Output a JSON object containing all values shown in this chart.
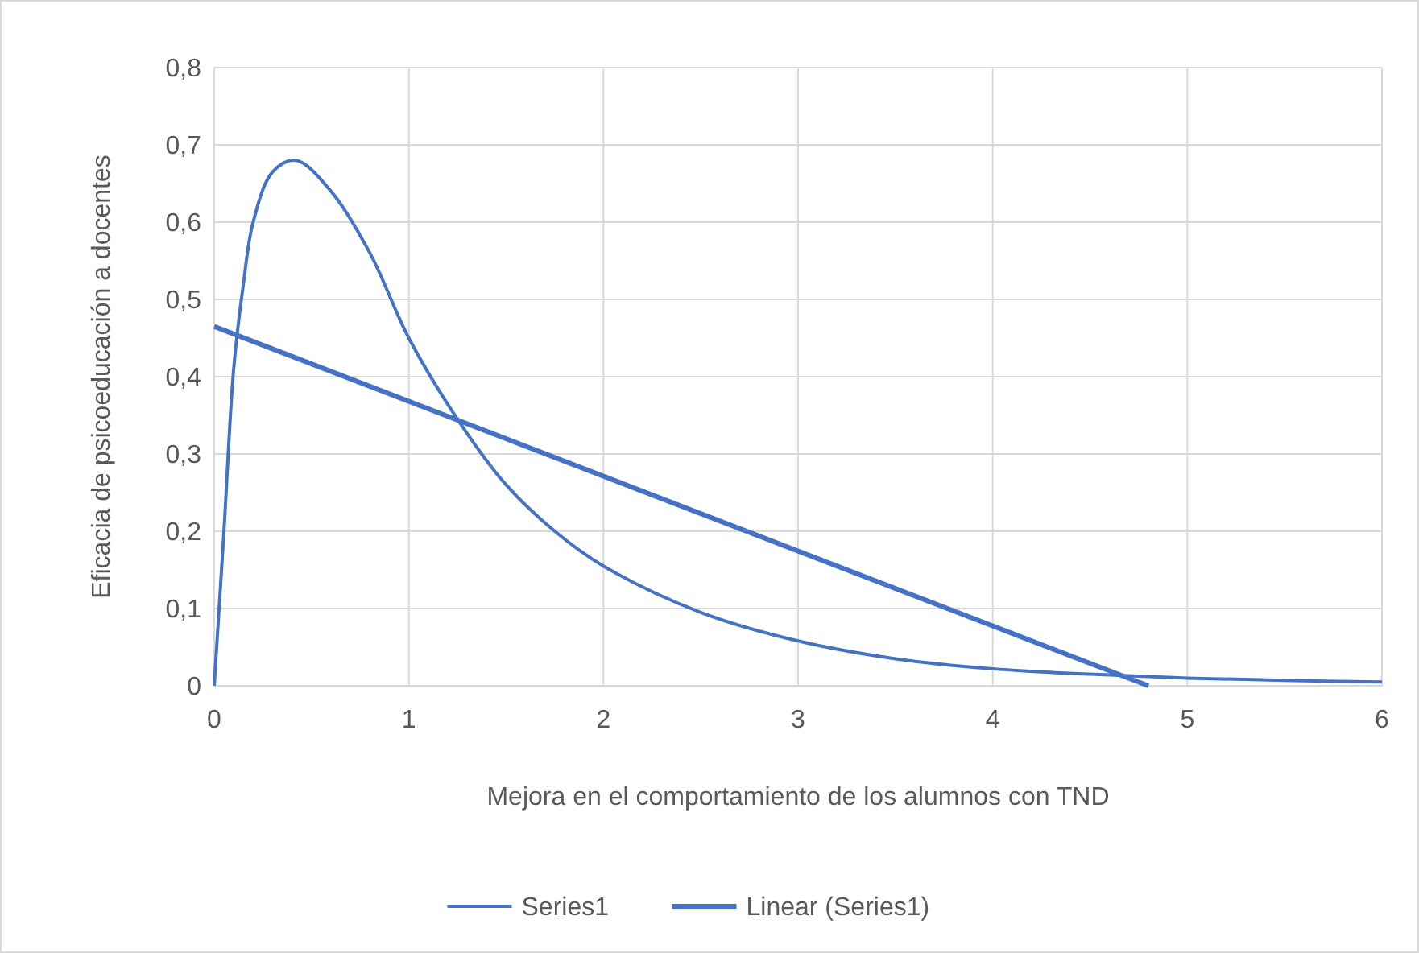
{
  "chart_data": {
    "type": "line",
    "xlabel": "Mejora en el comportamiento de los alumnos con TND",
    "ylabel": "Eficacia de psicoeducación a docentes",
    "xlim": [
      0,
      6
    ],
    "xticks": [
      0,
      1,
      2,
      3,
      4,
      5,
      6
    ],
    "ylim": [
      0,
      0.8
    ],
    "yticks": [
      {
        "value": 0,
        "label": "0"
      },
      {
        "value": 0.1,
        "label": "0,1"
      },
      {
        "value": 0.2,
        "label": "0,2"
      },
      {
        "value": 0.3,
        "label": "0,3"
      },
      {
        "value": 0.4,
        "label": "0,4"
      },
      {
        "value": 0.5,
        "label": "0,5"
      },
      {
        "value": 0.6,
        "label": "0,6"
      },
      {
        "value": 0.7,
        "label": "0,7"
      },
      {
        "value": 0.8,
        "label": "0,8"
      }
    ],
    "grid": true,
    "legend": "bottom",
    "series": [
      {
        "name": "Series1",
        "color": "#4472c4",
        "x": [
          0,
          0.05,
          0.1,
          0.15,
          0.2,
          0.3,
          0.42,
          0.6,
          0.8,
          1,
          1.25,
          1.5,
          1.75,
          2,
          2.5,
          3,
          3.5,
          4,
          4.5,
          5,
          5.5,
          6
        ],
        "values": [
          0,
          0.2,
          0.41,
          0.52,
          0.6,
          0.665,
          0.68,
          0.64,
          0.56,
          0.45,
          0.345,
          0.26,
          0.2,
          0.155,
          0.095,
          0.058,
          0.035,
          0.022,
          0.015,
          0.01,
          0.007,
          0.005
        ]
      },
      {
        "name": "Linear (Series1)",
        "color": "#4472c4",
        "x": [
          0,
          4.8
        ],
        "values": [
          0.465,
          0
        ]
      }
    ]
  }
}
